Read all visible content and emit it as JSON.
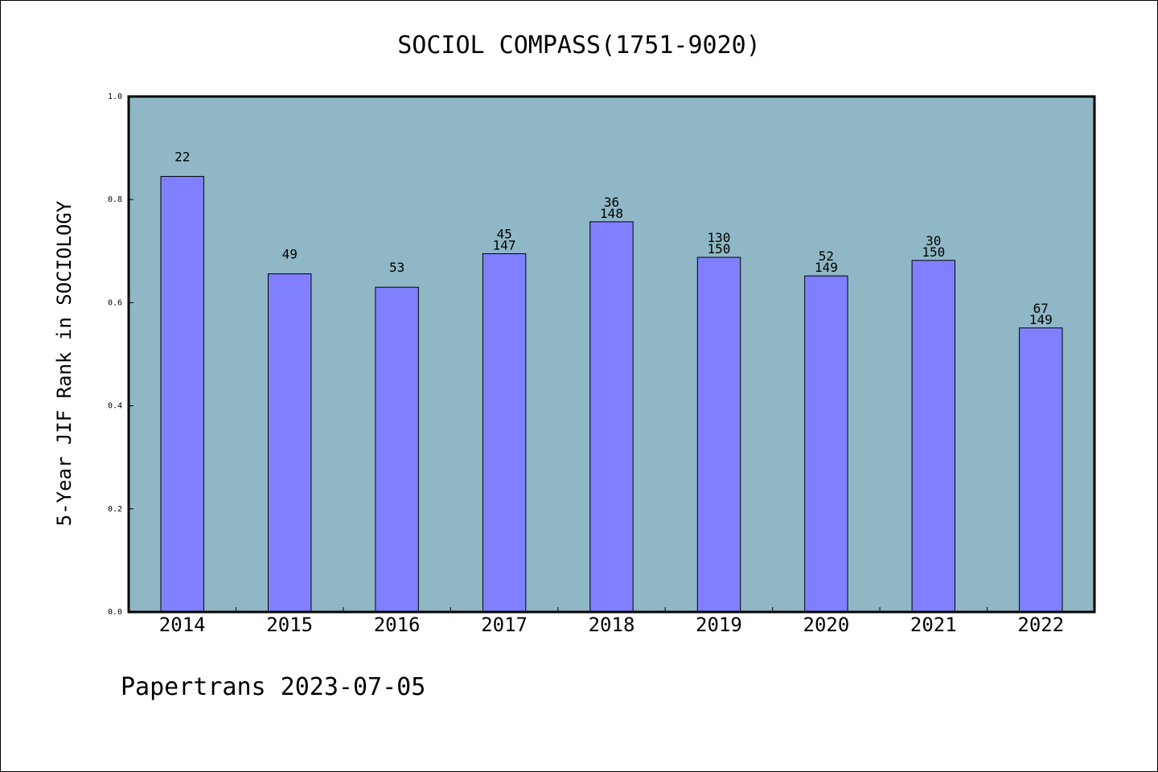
{
  "chart_data": {
    "type": "bar",
    "title": "SOCIOL COMPASS(1751-9020)",
    "xlabel": "",
    "ylabel": "5-Year JIF Rank in SOCIOLOGY",
    "categories": [
      "2014",
      "2015",
      "2016",
      "2017",
      "2018",
      "2019",
      "2020",
      "2021",
      "2022"
    ],
    "values": [
      0.845,
      0.656,
      0.63,
      0.695,
      0.757,
      0.688,
      0.652,
      0.682,
      0.551
    ],
    "bar_labels": [
      [
        "22"
      ],
      [
        "49"
      ],
      [
        "53"
      ],
      [
        "45",
        "147"
      ],
      [
        "36",
        "148"
      ],
      [
        "130",
        "150"
      ],
      [
        "52",
        "149"
      ],
      [
        "30",
        "150"
      ],
      [
        "67",
        "149"
      ]
    ],
    "ylim": [
      0,
      1.0
    ],
    "yticks": [
      "0.0",
      "0.2",
      "0.4",
      "0.6",
      "0.8",
      "1.0"
    ],
    "ytick_values": [
      0,
      0.2,
      0.4,
      0.6,
      0.8,
      1.0
    ],
    "grid": false,
    "colors": {
      "plot_background": "#8fb7c6",
      "bar_fill": "#8080ff",
      "bar_stroke": "#000000"
    }
  },
  "footer": {
    "text": "Papertrans 2023-07-05"
  }
}
